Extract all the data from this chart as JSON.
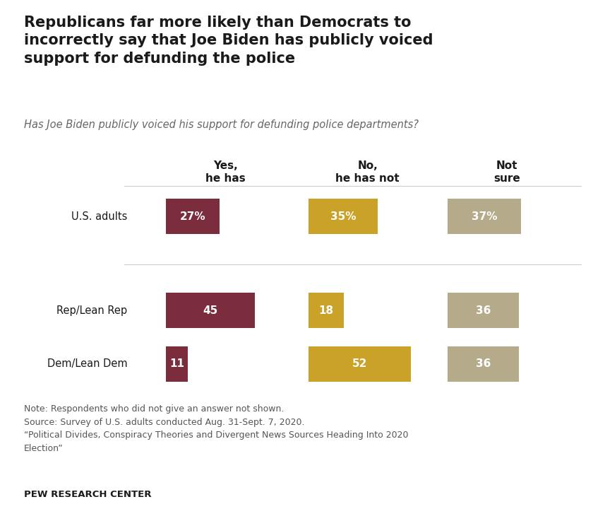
{
  "title": "Republicans far more likely than Democrats to\nincorrectly say that Joe Biden has publicly voiced\nsupport for defunding the police",
  "subtitle": "Has Joe Biden publicly voiced his support for defunding police departments?",
  "categories": [
    "U.S. adults",
    "Rep/Lean Rep",
    "Dem/Lean Dem"
  ],
  "col_headers": [
    "Yes,\nhe has",
    "No,\nhe has not",
    "Not\nsure"
  ],
  "data": [
    [
      27,
      35,
      37
    ],
    [
      45,
      18,
      36
    ],
    [
      11,
      52,
      36
    ]
  ],
  "labels": [
    [
      "27%",
      "35%",
      "37%"
    ],
    [
      "45",
      "18",
      "36"
    ],
    [
      "11",
      "52",
      "36"
    ]
  ],
  "colors": [
    "#7b2d3e",
    "#c9a227",
    "#b5aa8a"
  ],
  "label_text_colors": [
    "#ffffff",
    "#ffffff",
    "#4a4a4a"
  ],
  "note_lines": [
    "Note: Respondents who did not give an answer not shown.",
    "Source: Survey of U.S. adults conducted Aug. 31-Sept. 7, 2020.",
    "“Political Divides, Conspiracy Theories and Divergent News Sources Heading Into 2020",
    "Election”"
  ],
  "pew_label": "PEW RESEARCH CENTER",
  "background_color": "#ffffff",
  "top_bar_color": "#c9a227"
}
